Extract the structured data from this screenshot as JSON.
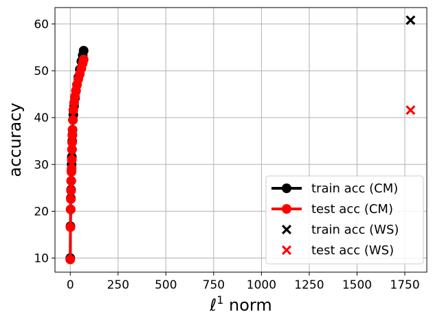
{
  "chart_data": {
    "type": "scatter",
    "xlabel_prefix": "ℓ",
    "xlabel_sup": "1",
    "xlabel_suffix": " norm",
    "ylabel": "accuracy",
    "xlim": [
      -80,
      1865
    ],
    "ylim": [
      7,
      63.5
    ],
    "xticks": [
      0,
      250,
      500,
      750,
      1000,
      1250,
      1500,
      1750
    ],
    "yticks": [
      10,
      20,
      30,
      40,
      50,
      60
    ],
    "grid": true,
    "legend_position": "bottom-right",
    "series": [
      {
        "name": "train acc (CM)",
        "style": "line-marker",
        "color": "#000000",
        "x": [
          0,
          1,
          2,
          3,
          4,
          5,
          6,
          7,
          8,
          9,
          10,
          11,
          12,
          14,
          16,
          20,
          25,
          30,
          35,
          42,
          50,
          58,
          65,
          70
        ],
        "y": [
          10,
          16.8,
          20.4,
          22.8,
          24.6,
          26.5,
          28.6,
          30.0,
          31.6,
          33.2,
          35.0,
          36.3,
          37.4,
          39.5,
          40.6,
          42.5,
          44.2,
          45.7,
          47.0,
          48.6,
          50.3,
          52.0,
          53.3,
          54.3
        ]
      },
      {
        "name": "test acc (CM)",
        "style": "line-marker",
        "color": "#ff0000",
        "x": [
          0,
          1,
          2,
          3,
          4,
          5,
          6,
          7,
          8,
          9,
          10,
          11,
          12,
          14,
          16,
          20,
          25,
          30,
          35,
          42,
          50,
          58,
          65,
          70
        ],
        "y": [
          9.7,
          16.6,
          20.4,
          22.6,
          24.4,
          26.5,
          28.4,
          29.1,
          31.0,
          33.2,
          34.7,
          36.2,
          37.4,
          39.5,
          41.6,
          43.2,
          44.5,
          45.8,
          47.0,
          48.2,
          49.3,
          50.5,
          51.6,
          52.4
        ]
      },
      {
        "name": "train acc (WS)",
        "style": "x-marker",
        "color": "#000000",
        "x": [
          1780
        ],
        "y": [
          60.8
        ]
      },
      {
        "name": "test acc (WS)",
        "style": "x-marker",
        "color": "#ff0000",
        "x": [
          1780
        ],
        "y": [
          41.6
        ]
      }
    ]
  }
}
